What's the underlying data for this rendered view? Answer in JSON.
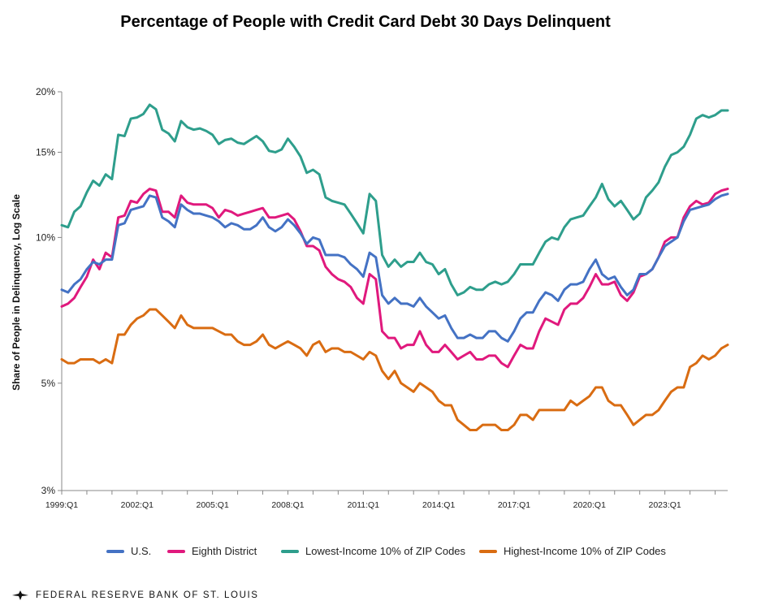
{
  "chart_data": {
    "type": "line",
    "title": "Percentage of People with Credit Card Debt 30 Days Delinquent",
    "ylabel": "Share of People in Delinquency, Log Scale",
    "xlabel": "",
    "yscale": "log",
    "ylim": [
      3,
      20
    ],
    "yticks": [
      3,
      5,
      10,
      15,
      20
    ],
    "ytick_labels": [
      "3%",
      "5%",
      "10%",
      "15%",
      "20%"
    ],
    "xticks": [
      1999,
      2002,
      2005,
      2008,
      2011,
      2014,
      2017,
      2020,
      2023
    ],
    "xtick_labels": [
      "1999:Q1",
      "2002:Q1",
      "2005:Q1",
      "2008:Q1",
      "2011:Q1",
      "2014:Q1",
      "2017:Q1",
      "2020:Q1",
      "2023:Q1"
    ],
    "x_start": 1999.0,
    "x_step": 0.25,
    "legend_position": "bottom",
    "grid": false,
    "series": [
      {
        "name": "U.S.",
        "color": "#4472C4",
        "values": [
          7.8,
          7.7,
          8.0,
          8.2,
          8.6,
          8.9,
          8.8,
          9.0,
          9.0,
          10.6,
          10.7,
          11.4,
          11.5,
          11.6,
          12.2,
          12.1,
          11.0,
          10.8,
          10.5,
          11.7,
          11.4,
          11.2,
          11.2,
          11.1,
          11.0,
          10.8,
          10.5,
          10.7,
          10.6,
          10.4,
          10.4,
          10.6,
          11.0,
          10.5,
          10.3,
          10.5,
          10.9,
          10.6,
          10.2,
          9.7,
          10.0,
          9.9,
          9.2,
          9.2,
          9.2,
          9.1,
          8.8,
          8.6,
          8.3,
          9.3,
          9.1,
          7.6,
          7.3,
          7.5,
          7.3,
          7.3,
          7.2,
          7.5,
          7.2,
          7.0,
          6.8,
          6.9,
          6.5,
          6.2,
          6.2,
          6.3,
          6.2,
          6.2,
          6.4,
          6.4,
          6.2,
          6.1,
          6.4,
          6.8,
          7.0,
          7.0,
          7.4,
          7.7,
          7.6,
          7.4,
          7.8,
          8.0,
          8.0,
          8.1,
          8.6,
          9.0,
          8.4,
          8.2,
          8.3,
          7.9,
          7.6,
          7.8,
          8.4,
          8.4,
          8.6,
          9.1,
          9.6,
          9.8,
          10.0,
          10.8,
          11.4,
          11.5,
          11.6,
          11.7,
          12.0,
          12.2,
          12.3
        ]
      },
      {
        "name": "Eighth District",
        "color": "#E0197D",
        "values": [
          7.2,
          7.3,
          7.5,
          7.9,
          8.3,
          9.0,
          8.6,
          9.3,
          9.1,
          11.0,
          11.1,
          11.9,
          11.8,
          12.3,
          12.6,
          12.5,
          11.3,
          11.3,
          11.0,
          12.2,
          11.8,
          11.7,
          11.7,
          11.7,
          11.5,
          11.0,
          11.4,
          11.3,
          11.1,
          11.2,
          11.3,
          11.4,
          11.5,
          11.0,
          11.0,
          11.1,
          11.2,
          10.9,
          10.3,
          9.6,
          9.6,
          9.4,
          8.7,
          8.4,
          8.2,
          8.1,
          7.9,
          7.5,
          7.3,
          8.4,
          8.2,
          6.4,
          6.2,
          6.2,
          5.9,
          6.0,
          6.0,
          6.4,
          6.0,
          5.8,
          5.8,
          6.0,
          5.8,
          5.6,
          5.7,
          5.8,
          5.6,
          5.6,
          5.7,
          5.7,
          5.5,
          5.4,
          5.7,
          6.0,
          5.9,
          5.9,
          6.4,
          6.8,
          6.7,
          6.6,
          7.1,
          7.3,
          7.3,
          7.5,
          7.9,
          8.4,
          8.0,
          8.0,
          8.1,
          7.6,
          7.4,
          7.7,
          8.3,
          8.4,
          8.6,
          9.1,
          9.8,
          10.0,
          10.0,
          11.0,
          11.6,
          11.9,
          11.7,
          11.8,
          12.3,
          12.5,
          12.6
        ]
      },
      {
        "name": "Lowest-Income 10% of ZIP Codes",
        "color": "#2E9E8C",
        "values": [
          10.6,
          10.5,
          11.3,
          11.6,
          12.4,
          13.1,
          12.8,
          13.5,
          13.2,
          16.3,
          16.2,
          17.6,
          17.7,
          18.0,
          18.8,
          18.4,
          16.7,
          16.4,
          15.8,
          17.4,
          16.9,
          16.7,
          16.8,
          16.6,
          16.3,
          15.6,
          15.9,
          16.0,
          15.7,
          15.6,
          15.9,
          16.2,
          15.8,
          15.1,
          15.0,
          15.2,
          16.0,
          15.4,
          14.7,
          13.6,
          13.8,
          13.5,
          12.1,
          11.9,
          11.8,
          11.7,
          11.2,
          10.7,
          10.2,
          12.3,
          11.9,
          9.2,
          8.7,
          9.0,
          8.7,
          8.9,
          8.9,
          9.3,
          8.9,
          8.8,
          8.4,
          8.6,
          8.0,
          7.6,
          7.7,
          7.9,
          7.8,
          7.8,
          8.0,
          8.1,
          8.0,
          8.1,
          8.4,
          8.8,
          8.8,
          8.8,
          9.3,
          9.8,
          10.0,
          9.9,
          10.5,
          10.9,
          11.0,
          11.1,
          11.6,
          12.1,
          12.9,
          12.0,
          11.6,
          11.9,
          11.4,
          10.9,
          11.2,
          12.1,
          12.5,
          13.0,
          14.0,
          14.8,
          15.0,
          15.4,
          16.3,
          17.6,
          17.9,
          17.7,
          17.9,
          18.3,
          18.3
        ]
      },
      {
        "name": "Highest-Income 10% of ZIP Codes",
        "color": "#D96C12",
        "values": [
          5.6,
          5.5,
          5.5,
          5.6,
          5.6,
          5.6,
          5.5,
          5.6,
          5.5,
          6.3,
          6.3,
          6.6,
          6.8,
          6.9,
          7.1,
          7.1,
          6.9,
          6.7,
          6.5,
          6.9,
          6.6,
          6.5,
          6.5,
          6.5,
          6.5,
          6.4,
          6.3,
          6.3,
          6.1,
          6.0,
          6.0,
          6.1,
          6.3,
          6.0,
          5.9,
          6.0,
          6.1,
          6.0,
          5.9,
          5.7,
          6.0,
          6.1,
          5.8,
          5.9,
          5.9,
          5.8,
          5.8,
          5.7,
          5.6,
          5.8,
          5.7,
          5.3,
          5.1,
          5.3,
          5.0,
          4.9,
          4.8,
          5.0,
          4.9,
          4.8,
          4.6,
          4.5,
          4.5,
          4.2,
          4.1,
          4.0,
          4.0,
          4.1,
          4.1,
          4.1,
          4.0,
          4.0,
          4.1,
          4.3,
          4.3,
          4.2,
          4.4,
          4.4,
          4.4,
          4.4,
          4.4,
          4.6,
          4.5,
          4.6,
          4.7,
          4.9,
          4.9,
          4.6,
          4.5,
          4.5,
          4.3,
          4.1,
          4.2,
          4.3,
          4.3,
          4.4,
          4.6,
          4.8,
          4.9,
          4.9,
          5.4,
          5.5,
          5.7,
          5.6,
          5.7,
          5.9,
          6.0
        ]
      }
    ]
  },
  "footer": {
    "org": "FEDERAL RESERVE BANK OF ST. LOUIS",
    "logo_icon": "eagle-icon"
  }
}
